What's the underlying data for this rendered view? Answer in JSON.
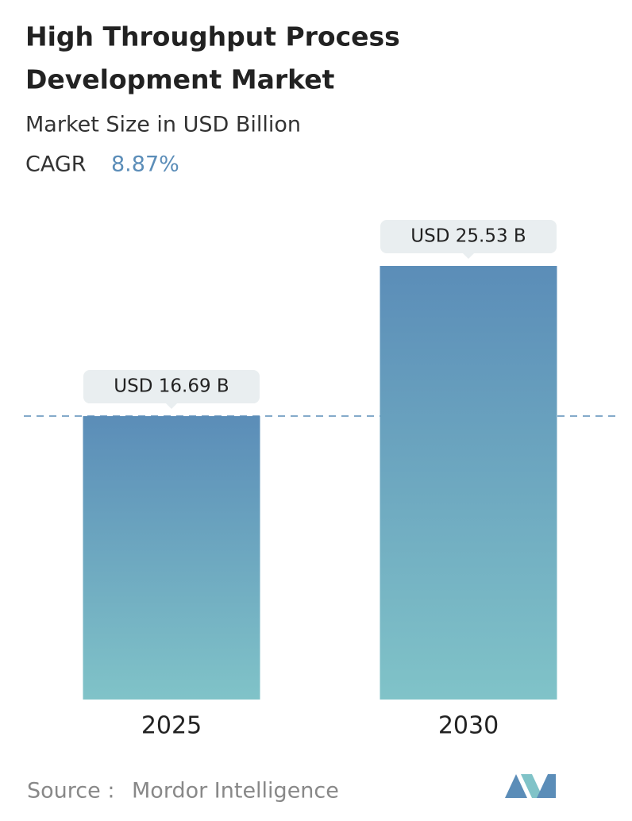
{
  "chart_data": {
    "type": "bar",
    "title": [
      "High Throughput Process",
      "Development Market"
    ],
    "subtitle": "Market Size in USD Billion",
    "cagr_label": "CAGR",
    "cagr": "8.87%",
    "categories": [
      "2025",
      "2030"
    ],
    "values": [
      16.69,
      25.53
    ],
    "value_labels": [
      "USD 16.69 B",
      "USD 25.53 B"
    ],
    "color": [
      "#5b8db8",
      "#80c3c8"
    ],
    "source_label": "Source :",
    "source": "Mordor Intelligence"
  }
}
